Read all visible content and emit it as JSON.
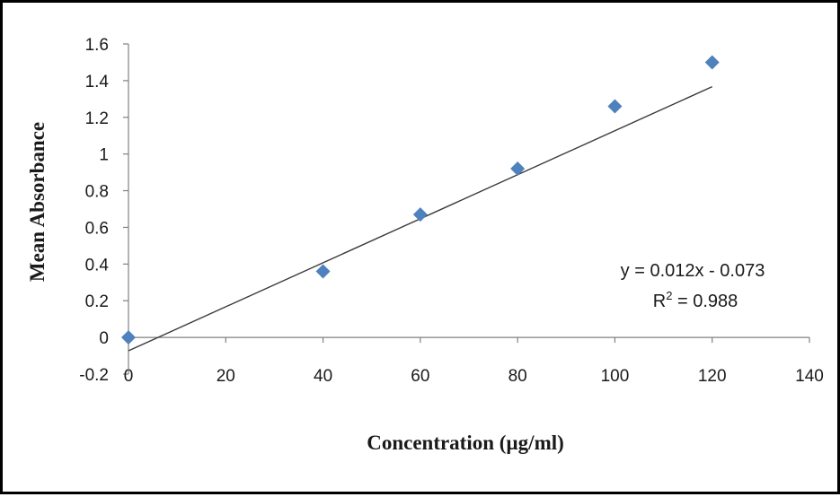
{
  "chart_data": {
    "type": "scatter",
    "xlabel": "Concentration (µg/ml)",
    "ylabel": "Mean Absorbance",
    "xlim": [
      0,
      140
    ],
    "ylim": [
      -0.2,
      1.6
    ],
    "x_ticks": [
      "0",
      "20",
      "40",
      "60",
      "80",
      "100",
      "120",
      "140"
    ],
    "y_ticks": [
      "-0.2",
      "0",
      "0.2",
      "0.4",
      "0.6",
      "0.8",
      "1",
      "1.2",
      "1.4",
      "1.6"
    ],
    "grid": false,
    "legend": "none",
    "series": [
      {
        "x": [
          0,
          40,
          60,
          80,
          100,
          120
        ],
        "y": [
          0,
          0.36,
          0.67,
          0.92,
          1.26,
          1.5
        ],
        "marker": "diamond",
        "color": "#4F81BD"
      }
    ],
    "trendline": {
      "slope": 0.012,
      "intercept": -0.073,
      "x_range": [
        0,
        120
      ],
      "color": "#3a3a3a",
      "equation": "y = 0.012x - 0.073",
      "r_squared_label": "R",
      "r_squared_exponent": "2",
      "r_squared_value": " = 0.988"
    }
  }
}
